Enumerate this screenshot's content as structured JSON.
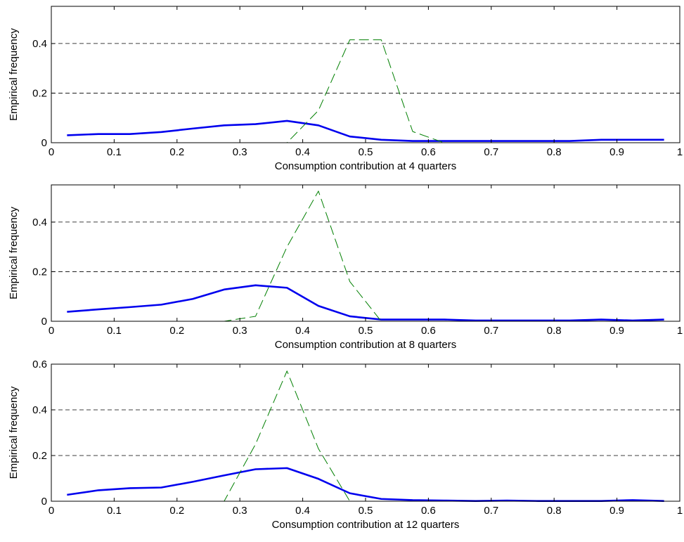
{
  "chart_data": [
    {
      "type": "line",
      "xlabel": "Consumption contribution at 4 quarters",
      "ylabel": "Empirical frequency",
      "xlim": [
        0,
        1
      ],
      "ylim": [
        0,
        0.55
      ],
      "xticks": [
        "0",
        "0.1",
        "0.2",
        "0.3",
        "0.4",
        "0.5",
        "0.6",
        "0.7",
        "0.8",
        "0.9",
        "1"
      ],
      "xtick_values": [
        0,
        0.1,
        0.2,
        0.3,
        0.4,
        0.5,
        0.6,
        0.7,
        0.8,
        0.9,
        1
      ],
      "yticks": [
        "0",
        "0.2",
        "0.4"
      ],
      "ytick_values": [
        0,
        0.2,
        0.4
      ],
      "grid": "horizontal dashed",
      "x": [
        0.025,
        0.075,
        0.125,
        0.175,
        0.225,
        0.275,
        0.325,
        0.375,
        0.425,
        0.475,
        0.525,
        0.575,
        0.625,
        0.675,
        0.725,
        0.775,
        0.825,
        0.875,
        0.925,
        0.975
      ],
      "series": [
        {
          "style": "solid",
          "color": "#0000ee",
          "values": [
            0.03,
            0.035,
            0.035,
            0.043,
            0.057,
            0.07,
            0.075,
            0.088,
            0.07,
            0.025,
            0.012,
            0.007,
            0.007,
            0.007,
            0.007,
            0.007,
            0.007,
            0.012,
            0.012,
            0.012
          ]
        },
        {
          "style": "dashed",
          "color": "#007f00",
          "values": [
            0,
            0,
            0,
            0,
            0,
            0,
            0,
            0,
            0.13,
            0.415,
            0.415,
            0.045,
            0,
            0,
            0,
            0,
            0,
            0,
            0,
            0
          ]
        }
      ]
    },
    {
      "type": "line",
      "xlabel": "Consumption contribution at 8 quarters",
      "ylabel": "Empirical frequency",
      "xlim": [
        0,
        1
      ],
      "ylim": [
        0,
        0.55
      ],
      "xticks": [
        "0",
        "0.1",
        "0.2",
        "0.3",
        "0.4",
        "0.5",
        "0.6",
        "0.7",
        "0.8",
        "0.9",
        "1"
      ],
      "xtick_values": [
        0,
        0.1,
        0.2,
        0.3,
        0.4,
        0.5,
        0.6,
        0.7,
        0.8,
        0.9,
        1
      ],
      "yticks": [
        "0",
        "0.2",
        "0.4"
      ],
      "ytick_values": [
        0,
        0.2,
        0.4
      ],
      "grid": "horizontal dashed",
      "x": [
        0.025,
        0.075,
        0.125,
        0.175,
        0.225,
        0.275,
        0.325,
        0.375,
        0.425,
        0.475,
        0.525,
        0.575,
        0.625,
        0.675,
        0.725,
        0.775,
        0.825,
        0.875,
        0.925,
        0.975
      ],
      "series": [
        {
          "style": "solid",
          "color": "#0000ee",
          "values": [
            0.038,
            0.048,
            0.057,
            0.067,
            0.09,
            0.128,
            0.145,
            0.135,
            0.062,
            0.02,
            0.007,
            0.007,
            0.007,
            0.003,
            0.003,
            0.003,
            0.003,
            0.007,
            0.003,
            0.007
          ]
        },
        {
          "style": "dashed",
          "color": "#007f00",
          "values": [
            0,
            0,
            0,
            0,
            0,
            0,
            0.02,
            0.3,
            0.525,
            0.16,
            0,
            0,
            0,
            0,
            0,
            0,
            0,
            0,
            0,
            0
          ]
        }
      ]
    },
    {
      "type": "line",
      "xlabel": "Consumption contribution at 12 quarters",
      "ylabel": "Empirical frequency",
      "xlim": [
        0,
        1
      ],
      "ylim": [
        0,
        0.6
      ],
      "xticks": [
        "0",
        "0.1",
        "0.2",
        "0.3",
        "0.4",
        "0.5",
        "0.6",
        "0.7",
        "0.8",
        "0.9",
        "1"
      ],
      "xtick_values": [
        0,
        0.1,
        0.2,
        0.3,
        0.4,
        0.5,
        0.6,
        0.7,
        0.8,
        0.9,
        1
      ],
      "yticks": [
        "0",
        "0.2",
        "0.4",
        "0.6"
      ],
      "ytick_values": [
        0,
        0.2,
        0.4,
        0.6
      ],
      "grid": "horizontal dashed",
      "x": [
        0.025,
        0.075,
        0.125,
        0.175,
        0.225,
        0.275,
        0.325,
        0.375,
        0.425,
        0.475,
        0.525,
        0.575,
        0.625,
        0.675,
        0.725,
        0.775,
        0.825,
        0.875,
        0.925,
        0.975
      ],
      "series": [
        {
          "style": "solid",
          "color": "#0000ee",
          "values": [
            0.028,
            0.048,
            0.057,
            0.06,
            0.085,
            0.113,
            0.14,
            0.145,
            0.098,
            0.035,
            0.01,
            0.005,
            0.003,
            0.001,
            0.003,
            0.001,
            0.001,
            0.001,
            0.005,
            0.001
          ]
        },
        {
          "style": "dashed",
          "color": "#007f00",
          "values": [
            0,
            0,
            0,
            0,
            0,
            0,
            0.25,
            0.57,
            0.23,
            0,
            0,
            0,
            0,
            0,
            0,
            0,
            0,
            0,
            0,
            0
          ]
        }
      ]
    }
  ]
}
